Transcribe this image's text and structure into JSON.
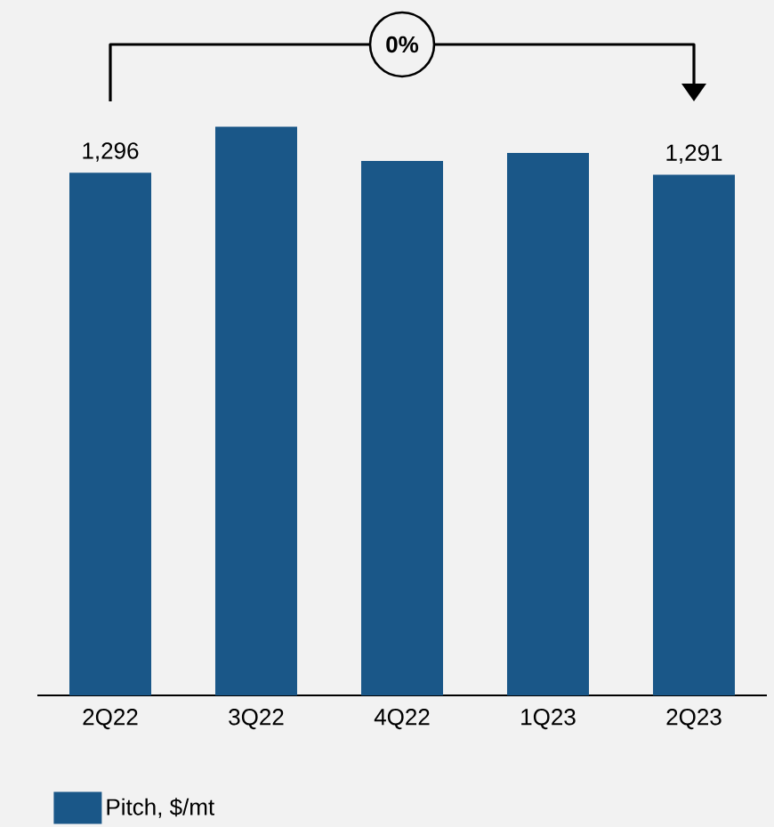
{
  "chart_data": {
    "type": "bar",
    "categories": [
      "2Q22",
      "3Q22",
      "4Q22",
      "1Q23",
      "2Q23"
    ],
    "series": [
      {
        "name": "Pitch, $/mt",
        "color": "#1a5788",
        "values": [
          1296,
          1410,
          1325,
          1345,
          1291
        ],
        "value_labels": [
          "1,296",
          null,
          null,
          null,
          "1,291"
        ]
      }
    ],
    "annotations": [
      "**0%**"
    ],
    "legend": "bottom left"
  }
}
